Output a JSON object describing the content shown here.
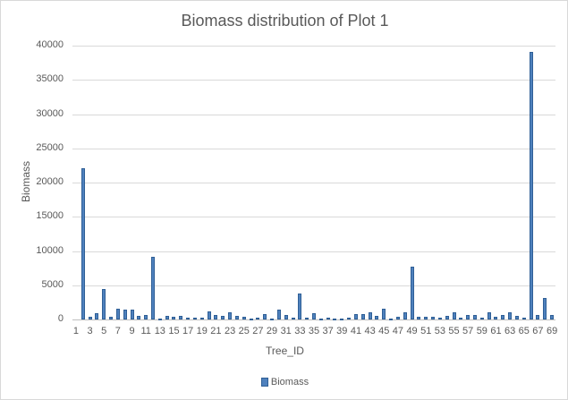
{
  "chart_data": {
    "type": "bar",
    "title": "Biomass distribution of Plot 1",
    "xlabel": "Tree_ID",
    "ylabel": "Biomass",
    "ylim": [
      0,
      40000
    ],
    "yticks": [
      0,
      5000,
      10000,
      15000,
      20000,
      25000,
      30000,
      35000,
      40000
    ],
    "xtick_labels": [
      "1",
      "3",
      "5",
      "7",
      "9",
      "11",
      "13",
      "15",
      "17",
      "19",
      "21",
      "23",
      "25",
      "27",
      "29",
      "31",
      "33",
      "35",
      "37",
      "39",
      "41",
      "43",
      "45",
      "47",
      "49",
      "51",
      "53",
      "55",
      "57",
      "59",
      "61",
      "63",
      "65",
      "67",
      "69"
    ],
    "grid": true,
    "legend_position": "bottom",
    "legend": [
      "Biomass"
    ],
    "categories": [
      1,
      2,
      3,
      4,
      5,
      6,
      7,
      8,
      9,
      10,
      11,
      12,
      13,
      14,
      15,
      16,
      17,
      18,
      19,
      20,
      21,
      22,
      23,
      24,
      25,
      26,
      27,
      28,
      29,
      30,
      31,
      32,
      33,
      34,
      35,
      36,
      37,
      38,
      39,
      40,
      41,
      42,
      43,
      44,
      45,
      46,
      47,
      48,
      49,
      50,
      51,
      52,
      53,
      54,
      55,
      56,
      57,
      58,
      59,
      60,
      61,
      62,
      63,
      64,
      65,
      66,
      67,
      68,
      69
    ],
    "series": [
      {
        "name": "Biomass",
        "color": "#4f81bd",
        "values": [
          0,
          22100,
          400,
          900,
          4500,
          400,
          1600,
          1400,
          1500,
          500,
          700,
          9200,
          100,
          500,
          400,
          500,
          300,
          300,
          200,
          1200,
          700,
          500,
          1100,
          500,
          400,
          100,
          300,
          800,
          100,
          1500,
          600,
          300,
          3800,
          300,
          900,
          100,
          200,
          100,
          100,
          200,
          800,
          800,
          1100,
          500,
          1600,
          100,
          400,
          1100,
          7750,
          400,
          400,
          400,
          200,
          500,
          1100,
          200,
          700,
          600,
          200,
          1100,
          400,
          700,
          1100,
          500,
          300,
          39100,
          700,
          3200,
          700
        ]
      }
    ]
  }
}
